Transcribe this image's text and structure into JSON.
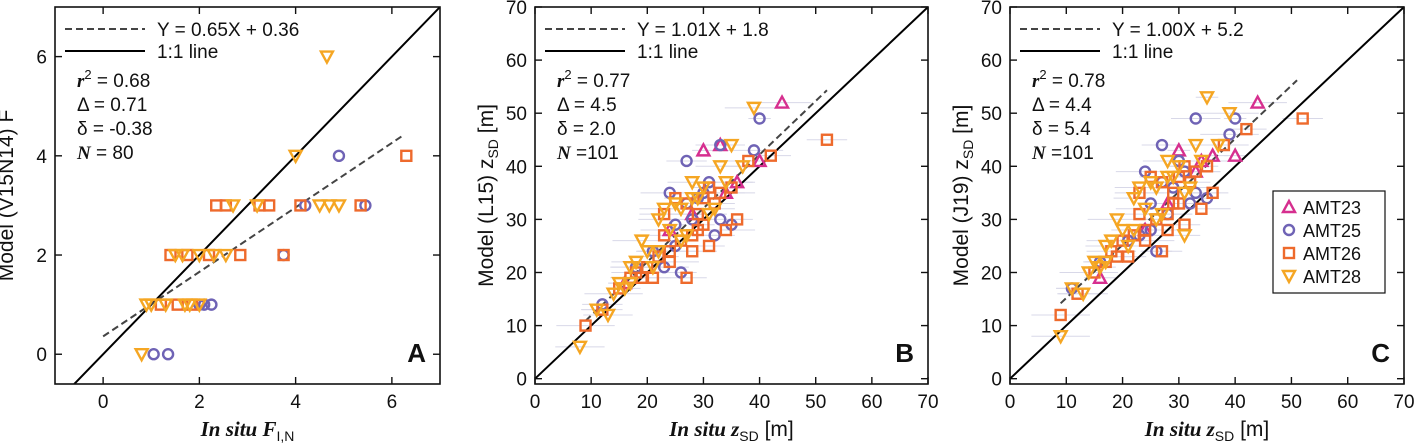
{
  "chart_data": [
    {
      "type": "scatter",
      "panel_letter": "A",
      "xlim": [
        -1,
        7
      ],
      "ylim": [
        -0.6,
        7
      ],
      "xticks": [
        0,
        2,
        4,
        6
      ],
      "yticks": [
        0,
        2,
        4,
        6
      ],
      "xlabel": "In situ F",
      "xlabel_sub": "I,N",
      "ylabel": "Model (V15N14) F",
      "legend": [
        "Y = 0.65X + 0.36",
        "1:1 line"
      ],
      "fit": {
        "slope": 0.65,
        "intercept": 0.36,
        "x_range": [
          0,
          6.2
        ]
      },
      "stats": {
        "r2_label": "r",
        "r2": "= 0.68",
        "delta_label": "Δ",
        "delta": "= 0.71",
        "delta_small_label": "δ",
        "delta_small": "= -0.38",
        "n_label": "N",
        "n": "= 80"
      },
      "series": [
        {
          "name": "AMT23",
          "marker": "triangle",
          "color": "#d62f8f",
          "points": []
        },
        {
          "name": "AMT25",
          "marker": "circle",
          "color": "#6f63b5",
          "points": [
            [
              1.05,
              0
            ],
            [
              1.35,
              0
            ],
            [
              2.1,
              1
            ],
            [
              2.25,
              1
            ],
            [
              3.75,
              2
            ],
            [
              4.2,
              3
            ],
            [
              4.9,
              4
            ],
            [
              5.45,
              3
            ],
            [
              2.0,
              1
            ]
          ]
        },
        {
          "name": "AMT26",
          "marker": "square",
          "color": "#ee6a2c",
          "points": [
            [
              1.2,
              1
            ],
            [
              1.55,
              1
            ],
            [
              1.85,
              1
            ],
            [
              1.4,
              2
            ],
            [
              1.75,
              2
            ],
            [
              2.2,
              2
            ],
            [
              2.85,
              2
            ],
            [
              3.75,
              2
            ],
            [
              2.35,
              3
            ],
            [
              2.55,
              3
            ],
            [
              3.25,
              3
            ],
            [
              3.45,
              3
            ],
            [
              4.1,
              3
            ],
            [
              5.35,
              3
            ],
            [
              6.3,
              4
            ]
          ]
        },
        {
          "name": "AMT28",
          "marker": "triangle-down",
          "color": "#f5a623",
          "points": [
            [
              0.8,
              0
            ],
            [
              0.9,
              1
            ],
            [
              1.0,
              1
            ],
            [
              1.3,
              1
            ],
            [
              1.7,
              1
            ],
            [
              1.8,
              1
            ],
            [
              2.0,
              1
            ],
            [
              1.5,
              2
            ],
            [
              1.65,
              2
            ],
            [
              2.0,
              2
            ],
            [
              2.3,
              2
            ],
            [
              2.55,
              2
            ],
            [
              2.7,
              3
            ],
            [
              3.2,
              3
            ],
            [
              4.5,
              3
            ],
            [
              4.7,
              3
            ],
            [
              4.9,
              3
            ],
            [
              4.0,
              4
            ],
            [
              4.65,
              6
            ]
          ]
        }
      ]
    },
    {
      "type": "scatter",
      "panel_letter": "B",
      "xlim": [
        0,
        70
      ],
      "ylim": [
        -1,
        70
      ],
      "xticks": [
        0,
        10,
        20,
        30,
        40,
        50,
        60,
        70
      ],
      "yticks": [
        0,
        10,
        20,
        30,
        40,
        50,
        60,
        70
      ],
      "xlabel": "In situ z",
      "xlabel_sub": "SD",
      "xlabel_unit": "[m]",
      "ylabel": "Model (L15) z",
      "ylabel_sub": "SD",
      "ylabel_unit": "[m]",
      "legend": [
        "Y = 1.01X + 1.8",
        "1:1 line"
      ],
      "fit": {
        "slope": 1.01,
        "intercept": 1.8,
        "x_range": [
          9,
          52
        ]
      },
      "stats": {
        "r2_label": "r",
        "r2": "= 0.77",
        "delta_label": "Δ",
        "delta": "= 4.5",
        "delta_small_label": "δ",
        "delta_small": "= 2.0",
        "n_label": "N",
        "n": "=101"
      },
      "series": [
        {
          "name": "AMT23",
          "marker": "triangle",
          "color": "#d62f8f",
          "points": [
            [
              16,
              18
            ],
            [
              24,
              28
            ],
            [
              30,
              43
            ],
            [
              33,
              44
            ],
            [
              36,
              37
            ],
            [
              40,
              41
            ],
            [
              44,
              52
            ],
            [
              28,
              31
            ],
            [
              34,
              35
            ]
          ]
        },
        {
          "name": "AMT25",
          "marker": "circle",
          "color": "#6f63b5",
          "points": [
            [
              12,
              14
            ],
            [
              18,
              21
            ],
            [
              21,
              24
            ],
            [
              23,
              21
            ],
            [
              24,
              35
            ],
            [
              25,
              25
            ],
            [
              26,
              20
            ],
            [
              27,
              41
            ],
            [
              28,
              30
            ],
            [
              29,
              34
            ],
            [
              30,
              35
            ],
            [
              31,
              37
            ],
            [
              32,
              27
            ],
            [
              33,
              44
            ],
            [
              33,
              30
            ],
            [
              35,
              29
            ],
            [
              39,
              43
            ],
            [
              40,
              49
            ],
            [
              27,
              33
            ],
            [
              25,
              29
            ]
          ]
        },
        {
          "name": "AMT26",
          "marker": "square",
          "color": "#ee6a2c",
          "points": [
            [
              9,
              10
            ],
            [
              12,
              13
            ],
            [
              15,
              17
            ],
            [
              17,
              19
            ],
            [
              18,
              20
            ],
            [
              19,
              19
            ],
            [
              20,
              21
            ],
            [
              21,
              19
            ],
            [
              22,
              23
            ],
            [
              23,
              31
            ],
            [
              23,
              27
            ],
            [
              24,
              24
            ],
            [
              25,
              34
            ],
            [
              26,
              26
            ],
            [
              27,
              33
            ],
            [
              27,
              19
            ],
            [
              28,
              27
            ],
            [
              28,
              24
            ],
            [
              29,
              31
            ],
            [
              30,
              34
            ],
            [
              30,
              29
            ],
            [
              31,
              25
            ],
            [
              31,
              36
            ],
            [
              32,
              33
            ],
            [
              33,
              35
            ],
            [
              34,
              28
            ],
            [
              35,
              36
            ],
            [
              36,
              30
            ],
            [
              38,
              41
            ],
            [
              42,
              42
            ],
            [
              52,
              45
            ],
            [
              24,
              22
            ],
            [
              29,
              28
            ]
          ]
        },
        {
          "name": "AMT28",
          "marker": "triangle-down",
          "color": "#f5a623",
          "points": [
            [
              8,
              6
            ],
            [
              11,
              13
            ],
            [
              13,
              12
            ],
            [
              14,
              16
            ],
            [
              15,
              18
            ],
            [
              16,
              17
            ],
            [
              17,
              18
            ],
            [
              18,
              22
            ],
            [
              19,
              26
            ],
            [
              20,
              24
            ],
            [
              21,
              21
            ],
            [
              22,
              30
            ],
            [
              23,
              32
            ],
            [
              24,
              28
            ],
            [
              25,
              33
            ],
            [
              26,
              32
            ],
            [
              27,
              27
            ],
            [
              28,
              34
            ],
            [
              28,
              37
            ],
            [
              29,
              34
            ],
            [
              30,
              36
            ],
            [
              31,
              31
            ],
            [
              32,
              32
            ],
            [
              33,
              40
            ],
            [
              34,
              37
            ],
            [
              35,
              44
            ],
            [
              37,
              40
            ],
            [
              39,
              51
            ],
            [
              22,
              24
            ],
            [
              26,
              26
            ],
            [
              17,
              21
            ]
          ]
        }
      ]
    },
    {
      "type": "scatter",
      "panel_letter": "C",
      "xlim": [
        0,
        70
      ],
      "ylim": [
        -1,
        70
      ],
      "xticks": [
        0,
        10,
        20,
        30,
        40,
        50,
        60,
        70
      ],
      "yticks": [
        0,
        10,
        20,
        30,
        40,
        50,
        60,
        70
      ],
      "xlabel": "In situ z",
      "xlabel_sub": "SD",
      "xlabel_unit": "[m]",
      "ylabel": "Model (J19) z",
      "ylabel_sub": "SD",
      "ylabel_unit": "[m]",
      "legend": [
        "Y = 1.00X + 5.2",
        "1:1 line"
      ],
      "fit": {
        "slope": 1.0,
        "intercept": 5.2,
        "x_range": [
          9,
          51
        ]
      },
      "stats": {
        "r2_label": "r",
        "r2": "= 0.78",
        "delta_label": "Δ",
        "delta": "= 4.4",
        "delta_small_label": "δ",
        "delta_small": "= 5.4",
        "n_label": "N",
        "n": "=101"
      },
      "series": [
        {
          "name": "AMT23",
          "marker": "triangle",
          "color": "#d62f8f",
          "points": [
            [
              16,
              19
            ],
            [
              24,
              28
            ],
            [
              30,
              43
            ],
            [
              33,
              39
            ],
            [
              36,
              42
            ],
            [
              40,
              42
            ],
            [
              44,
              52
            ],
            [
              28,
              33
            ],
            [
              34,
              41
            ]
          ]
        },
        {
          "name": "AMT25",
          "marker": "circle",
          "color": "#6f63b5",
          "points": [
            [
              11,
              17
            ],
            [
              16,
              22
            ],
            [
              21,
              26
            ],
            [
              23,
              27
            ],
            [
              24,
              39
            ],
            [
              25,
              28
            ],
            [
              26,
              24
            ],
            [
              27,
              44
            ],
            [
              28,
              31
            ],
            [
              29,
              36
            ],
            [
              30,
              41
            ],
            [
              31,
              39
            ],
            [
              32,
              33
            ],
            [
              33,
              49
            ],
            [
              33,
              35
            ],
            [
              35,
              34
            ],
            [
              39,
              46
            ],
            [
              40,
              49
            ],
            [
              27,
              37
            ],
            [
              25,
              33
            ]
          ]
        },
        {
          "name": "AMT26",
          "marker": "square",
          "color": "#ee6a2c",
          "points": [
            [
              9,
              12
            ],
            [
              12,
              16
            ],
            [
              15,
              20
            ],
            [
              17,
              22
            ],
            [
              18,
              24
            ],
            [
              19,
              23
            ],
            [
              20,
              26
            ],
            [
              21,
              23
            ],
            [
              22,
              27
            ],
            [
              23,
              35
            ],
            [
              23,
              31
            ],
            [
              24,
              28
            ],
            [
              25,
              38
            ],
            [
              26,
              30
            ],
            [
              27,
              37
            ],
            [
              27,
              24
            ],
            [
              28,
              31
            ],
            [
              28,
              28
            ],
            [
              29,
              35
            ],
            [
              30,
              38
            ],
            [
              30,
              33
            ],
            [
              31,
              29
            ],
            [
              31,
              40
            ],
            [
              32,
              37
            ],
            [
              33,
              39
            ],
            [
              34,
              32
            ],
            [
              35,
              40
            ],
            [
              36,
              35
            ],
            [
              38,
              44
            ],
            [
              42,
              47
            ],
            [
              52,
              49
            ],
            [
              24,
              26
            ],
            [
              29,
              33
            ]
          ]
        },
        {
          "name": "AMT28",
          "marker": "triangle-down",
          "color": "#f5a623",
          "points": [
            [
              9,
              8
            ],
            [
              11,
              17
            ],
            [
              13,
              16
            ],
            [
              14,
              20
            ],
            [
              15,
              22
            ],
            [
              16,
              21
            ],
            [
              17,
              22
            ],
            [
              18,
              26
            ],
            [
              19,
              30
            ],
            [
              20,
              28
            ],
            [
              21,
              25
            ],
            [
              22,
              34
            ],
            [
              23,
              36
            ],
            [
              24,
              32
            ],
            [
              25,
              37
            ],
            [
              26,
              36
            ],
            [
              27,
              31
            ],
            [
              28,
              38
            ],
            [
              28,
              41
            ],
            [
              29,
              38
            ],
            [
              30,
              40
            ],
            [
              31,
              35
            ],
            [
              32,
              36
            ],
            [
              33,
              44
            ],
            [
              34,
              41
            ],
            [
              35,
              53
            ],
            [
              37,
              44
            ],
            [
              39,
              50
            ],
            [
              22,
              28
            ],
            [
              26,
              30
            ],
            [
              17,
              25
            ],
            [
              31,
              27
            ]
          ]
        }
      ]
    }
  ],
  "shared_legend": {
    "items": [
      {
        "name": "AMT23",
        "marker": "triangle",
        "color": "#d62f8f"
      },
      {
        "name": "AMT25",
        "marker": "circle",
        "color": "#6f63b5"
      },
      {
        "name": "AMT26",
        "marker": "square",
        "color": "#ee6a2c"
      },
      {
        "name": "AMT28",
        "marker": "triangle-down",
        "color": "#f5a623"
      }
    ]
  },
  "colors": {
    "axis": "#111111",
    "fit_line": "#444444",
    "one_to_one": "#000000",
    "error_bar": "#d8d8e8"
  }
}
